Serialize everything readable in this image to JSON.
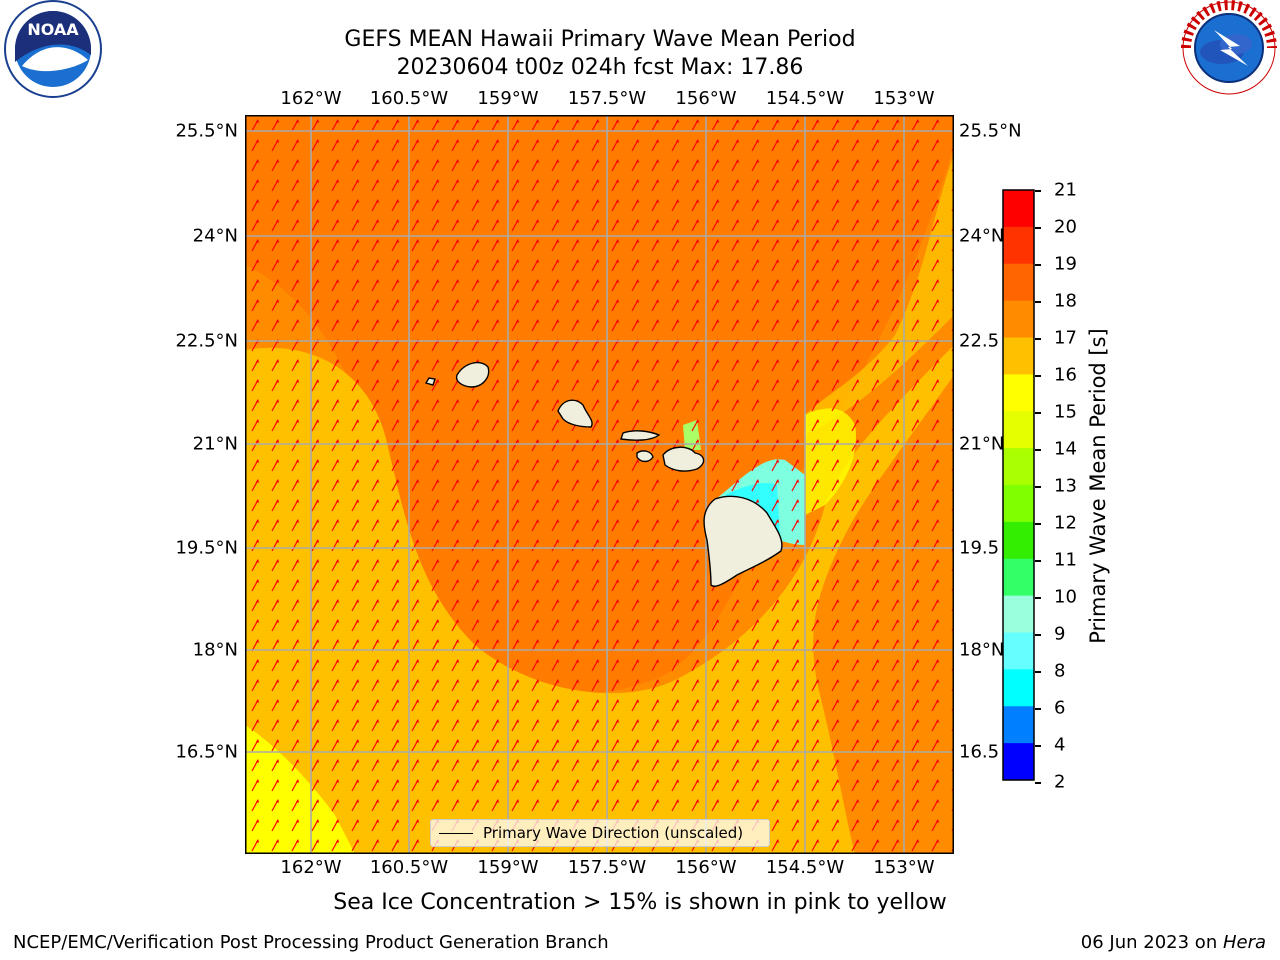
{
  "title_line1": "GEFS MEAN Hawaii Primary Wave Mean Period",
  "title_line2": "20230604 t00z 024h fcst   Max: 17.86",
  "lon_labels": [
    "162°W",
    "160.5°W",
    "159°W",
    "157.5°W",
    "156°W",
    "154.5°W",
    "153°W"
  ],
  "lat_labels": [
    "25.5°N",
    "24°N",
    "22.5°N",
    "21°N",
    "19.5°N",
    "18°N",
    "16.5°N"
  ],
  "lat_labels_right": [
    "25.5°N",
    "24°N",
    "22.5",
    "21°N",
    "19.5",
    "18°N",
    "16.5"
  ],
  "legend_label": "Primary Wave Direction (unscaled)",
  "colorbar": {
    "label": "Primary Wave Mean Period [s]",
    "ticks": [
      "21",
      "20",
      "19",
      "18",
      "17",
      "16",
      "15",
      "14",
      "13",
      "12",
      "11",
      "10",
      "9",
      "8",
      "6",
      "4",
      "2"
    ],
    "colors": [
      "#ff0000",
      "#ff3300",
      "#ff6600",
      "#ff8c00",
      "#ffc000",
      "#ffff00",
      "#e6ff00",
      "#aaff00",
      "#80ff00",
      "#33ee00",
      "#33ff66",
      "#99ffdd",
      "#66ffff",
      "#00ffff",
      "#0080ff",
      "#0000ff"
    ]
  },
  "caption": "Sea Ice Concentration > 15% is shown in pink to yellow",
  "footer_left": "NCEP/EMC/Verification Post Processing Product Generation Branch",
  "footer_date": "06 Jun 2023 on ",
  "footer_machine": "Hera",
  "logos": {
    "noaa": "NOAA",
    "nws": "NATIONAL WEATHER SERVICE"
  },
  "map_colors": {
    "period_17_18": "#ff8c00",
    "period_16_17": "#ffc000",
    "period_15_16": "#ffff00",
    "period_18_19": "#ff6600",
    "arrow": "#ff0000",
    "land": "#f0eedc",
    "grid": "#aaaaaa"
  }
}
